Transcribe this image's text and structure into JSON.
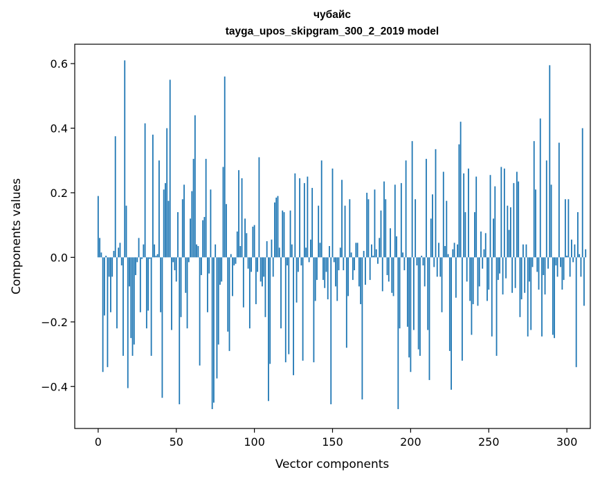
{
  "chart_data": {
    "type": "bar",
    "title": "чубайс",
    "subtitle": "tayga_upos_skipgram_300_2_2019 model",
    "xlabel": "Vector components",
    "ylabel": "Components values",
    "xlim": [
      -15,
      315
    ],
    "ylim": [
      -0.53,
      0.66
    ],
    "x_ticks": [
      0,
      50,
      100,
      150,
      200,
      250,
      300
    ],
    "x_tick_labels": [
      "0",
      "50",
      "100",
      "150",
      "200",
      "250",
      "300"
    ],
    "y_ticks": [
      -0.4,
      -0.2,
      0.0,
      0.2,
      0.4,
      0.6
    ],
    "y_tick_labels": [
      "−0.4",
      "−0.2",
      "0.0",
      "0.2",
      "0.4",
      "0.6"
    ],
    "grid": false,
    "bar_color": "#1f77b4",
    "values": [
      0.19,
      0.06,
      0.015,
      -0.355,
      -0.18,
      0.005,
      -0.34,
      -0.06,
      -0.17,
      -0.06,
      0.02,
      0.375,
      -0.22,
      0.03,
      0.045,
      -0.025,
      -0.305,
      0.61,
      0.16,
      -0.405,
      -0.09,
      -0.25,
      -0.305,
      -0.27,
      -0.055,
      -0.015,
      0.06,
      -0.17,
      -0.005,
      0.04,
      0.415,
      -0.22,
      -0.165,
      -0.005,
      -0.305,
      0.38,
      0.04,
      0.005,
      0.01,
      0.3,
      -0.17,
      -0.435,
      0.21,
      0.23,
      0.4,
      0.175,
      0.55,
      -0.225,
      -0.015,
      -0.04,
      -0.075,
      0.14,
      -0.455,
      -0.185,
      0.18,
      0.225,
      -0.11,
      -0.22,
      -0.015,
      0.12,
      0.205,
      0.305,
      0.44,
      0.04,
      0.035,
      -0.335,
      -0.055,
      0.115,
      0.125,
      0.305,
      -0.17,
      -0.05,
      0.21,
      -0.47,
      -0.45,
      0.04,
      -0.375,
      -0.27,
      -0.085,
      -0.075,
      0.28,
      0.56,
      0.165,
      -0.23,
      -0.29,
      0.01,
      -0.12,
      -0.025,
      -0.02,
      0.08,
      0.27,
      0.035,
      0.245,
      -0.155,
      0.12,
      0.075,
      -0.035,
      -0.22,
      -0.045,
      0.095,
      0.1,
      -0.145,
      -0.045,
      0.31,
      -0.075,
      -0.09,
      -0.06,
      -0.185,
      0.05,
      -0.445,
      -0.33,
      0.055,
      -0.06,
      0.17,
      0.185,
      0.19,
      0.03,
      -0.22,
      0.145,
      0.14,
      -0.325,
      -0.025,
      -0.3,
      0.145,
      0.04,
      -0.365,
      0.26,
      -0.14,
      -0.045,
      0.245,
      -0.025,
      -0.32,
      0.23,
      0.03,
      0.25,
      -0.015,
      0.055,
      0.215,
      -0.325,
      -0.135,
      -0.07,
      0.16,
      0.045,
      0.3,
      -0.07,
      -0.095,
      -0.045,
      -0.13,
      0.035,
      -0.455,
      0.275,
      -0.015,
      -0.09,
      -0.135,
      -0.04,
      0.03,
      0.24,
      -0.04,
      0.16,
      -0.28,
      -0.12,
      0.18,
      0.015,
      -0.07,
      -0.04,
      0.045,
      0.045,
      -0.09,
      -0.145,
      -0.44,
      0.02,
      -0.085,
      0.2,
      0.18,
      -0.07,
      0.04,
      0.005,
      0.21,
      0.025,
      -0.02,
      0.06,
      0.145,
      -0.105,
      0.235,
      0.18,
      -0.055,
      -0.075,
      0.09,
      -0.11,
      -0.12,
      0.225,
      0.065,
      -0.47,
      -0.22,
      0.23,
      0.015,
      -0.04,
      0.3,
      -0.215,
      -0.31,
      -0.355,
      0.36,
      -0.225,
      0.18,
      -0.025,
      -0.285,
      -0.305,
      0.005,
      -0.025,
      -0.09,
      0.305,
      -0.225,
      -0.38,
      0.12,
      0.195,
      -0.03,
      0.335,
      -0.06,
      0.045,
      -0.06,
      -0.17,
      0.265,
      0.035,
      0.175,
      0.01,
      -0.29,
      -0.41,
      0.025,
      0.045,
      -0.125,
      0.04,
      0.35,
      0.42,
      -0.32,
      0.26,
      0.14,
      -0.075,
      0.275,
      -0.135,
      -0.24,
      -0.145,
      0.14,
      0.25,
      -0.15,
      -0.09,
      0.08,
      -0.035,
      0.025,
      0.075,
      -0.135,
      -0.1,
      0.255,
      -0.245,
      0.12,
      0.22,
      -0.305,
      -0.07,
      -0.05,
      0.28,
      -0.115,
      0.275,
      -0.065,
      0.16,
      0.085,
      0.155,
      -0.11,
      0.23,
      -0.095,
      0.265,
      0.235,
      -0.185,
      -0.13,
      0.04,
      -0.11,
      0.04,
      -0.245,
      -0.075,
      -0.225,
      -0.03,
      0.36,
      0.21,
      -0.045,
      -0.1,
      0.43,
      -0.245,
      -0.055,
      -0.115,
      0.3,
      -0.035,
      0.595,
      0.225,
      -0.24,
      -0.25,
      -0.025,
      -0.06,
      0.355,
      -0.03,
      -0.1,
      -0.07,
      0.18,
      0.005,
      0.18,
      -0.06,
      0.055,
      -0.015,
      0.04,
      -0.34,
      0.14,
      0.01,
      -0.06,
      0.4,
      -0.15,
      0.025
    ]
  }
}
